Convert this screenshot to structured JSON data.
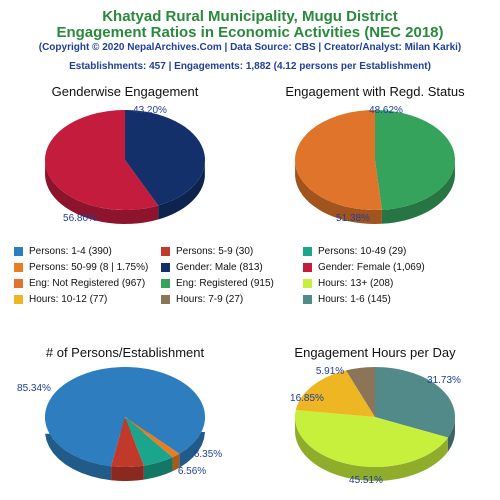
{
  "header": {
    "title_line1": "Khatyad Rural Municipality, Mugu District",
    "title_line2": "Engagement Ratios in Economic Activities (NEC 2018)",
    "credits": "(Copyright © 2020 NepalArchives.Com | Data Source: CBS | Creator/Analyst: Milan Karki)",
    "summary": "Establishments: 457 | Engagements: 1,882 (4.12 persons per Establishment)"
  },
  "legend": [
    {
      "label": "Persons: 1-4 (390)",
      "color": "#2e7ebf"
    },
    {
      "label": "Persons: 5-9 (30)",
      "color": "#c0392b"
    },
    {
      "label": "Persons: 10-49 (29)",
      "color": "#1aa58c"
    },
    {
      "label": "Persons: 50-99 (8 | 1.75%)",
      "color": "#e67e22"
    },
    {
      "label": "Gender: Male (813)",
      "color": "#14306b"
    },
    {
      "label": "Gender: Female (1,069)",
      "color": "#c41c3d"
    },
    {
      "label": "Eng: Not Registered (967)",
      "color": "#e0742a"
    },
    {
      "label": "Eng: Registered (915)",
      "color": "#35a35c"
    },
    {
      "label": "Hours: 13+ (208)",
      "color": "#c6f03c"
    },
    {
      "label": "Hours: 10-12 (77)",
      "color": "#efb623"
    },
    {
      "label": "Hours: 7-9 (27)",
      "color": "#8c7458"
    },
    {
      "label": "Hours: 1-6 (145)",
      "color": "#528a8a"
    }
  ],
  "chart_data": [
    {
      "type": "pie",
      "title": "Genderwise Engagement",
      "labels": [
        "Male",
        "Female"
      ],
      "values": [
        43.2,
        56.8
      ],
      "value_labels": [
        "43.20%",
        "56.80%"
      ],
      "colors": [
        "#14306b",
        "#c41c3d"
      ],
      "start_angle_deg": -90
    },
    {
      "type": "pie",
      "title": "Engagement with Regd. Status",
      "labels": [
        "Registered",
        "Not Registered"
      ],
      "values": [
        48.62,
        51.38
      ],
      "value_labels": [
        "48.62%",
        "51.38%"
      ],
      "colors": [
        "#35a35c",
        "#e0742a"
      ],
      "start_angle_deg": -90
    },
    {
      "type": "pie",
      "title": "# of Persons/Establishment",
      "labels": [
        "1-4",
        "50-99",
        "10-49",
        "5-9"
      ],
      "values": [
        85.34,
        1.75,
        6.35,
        6.56
      ],
      "value_labels": [
        "85.34%",
        "",
        "6.35%",
        "6.56%"
      ],
      "colors": [
        "#2e7ebf",
        "#e67e22",
        "#1aa58c",
        "#c0392b"
      ],
      "start_angle_deg": 100
    },
    {
      "type": "pie",
      "title": "Engagement Hours per Day",
      "labels": [
        "1-6",
        "13+",
        "10-12",
        "7-9"
      ],
      "values": [
        31.73,
        45.51,
        16.85,
        5.91
      ],
      "value_labels": [
        "31.73%",
        "45.51%",
        "16.85%",
        "5.91%"
      ],
      "colors": [
        "#528a8a",
        "#c6f03c",
        "#efb623",
        "#8c7458"
      ],
      "start_angle_deg": -90
    }
  ]
}
